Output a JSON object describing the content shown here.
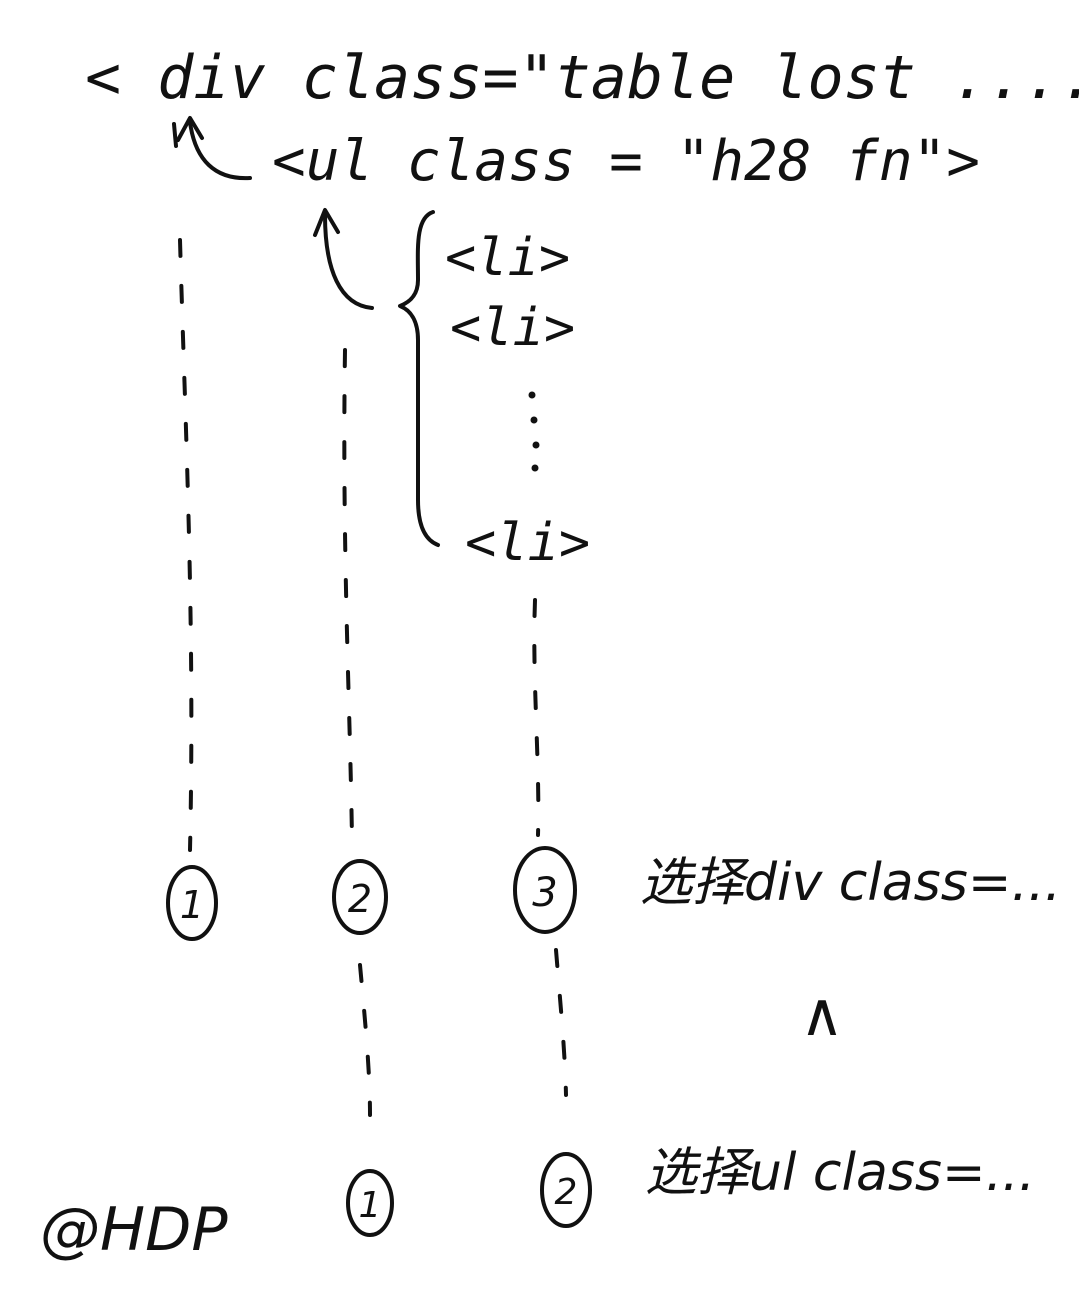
{
  "code": {
    "div_line": "< div   class=\"table lost ....>",
    "ul_line": "<ul  class = \"h28  fn\">",
    "li_lines": [
      "<li>",
      "<li>",
      "<li>"
    ]
  },
  "numbers": {
    "top_row": [
      "1",
      "2",
      "3"
    ],
    "bottom_row": [
      "1",
      "2"
    ]
  },
  "notes": {
    "select_div": "选择div class=...",
    "and_symbol": "∧",
    "select_ul": "选择ul class=..."
  },
  "signature": "@HDP"
}
